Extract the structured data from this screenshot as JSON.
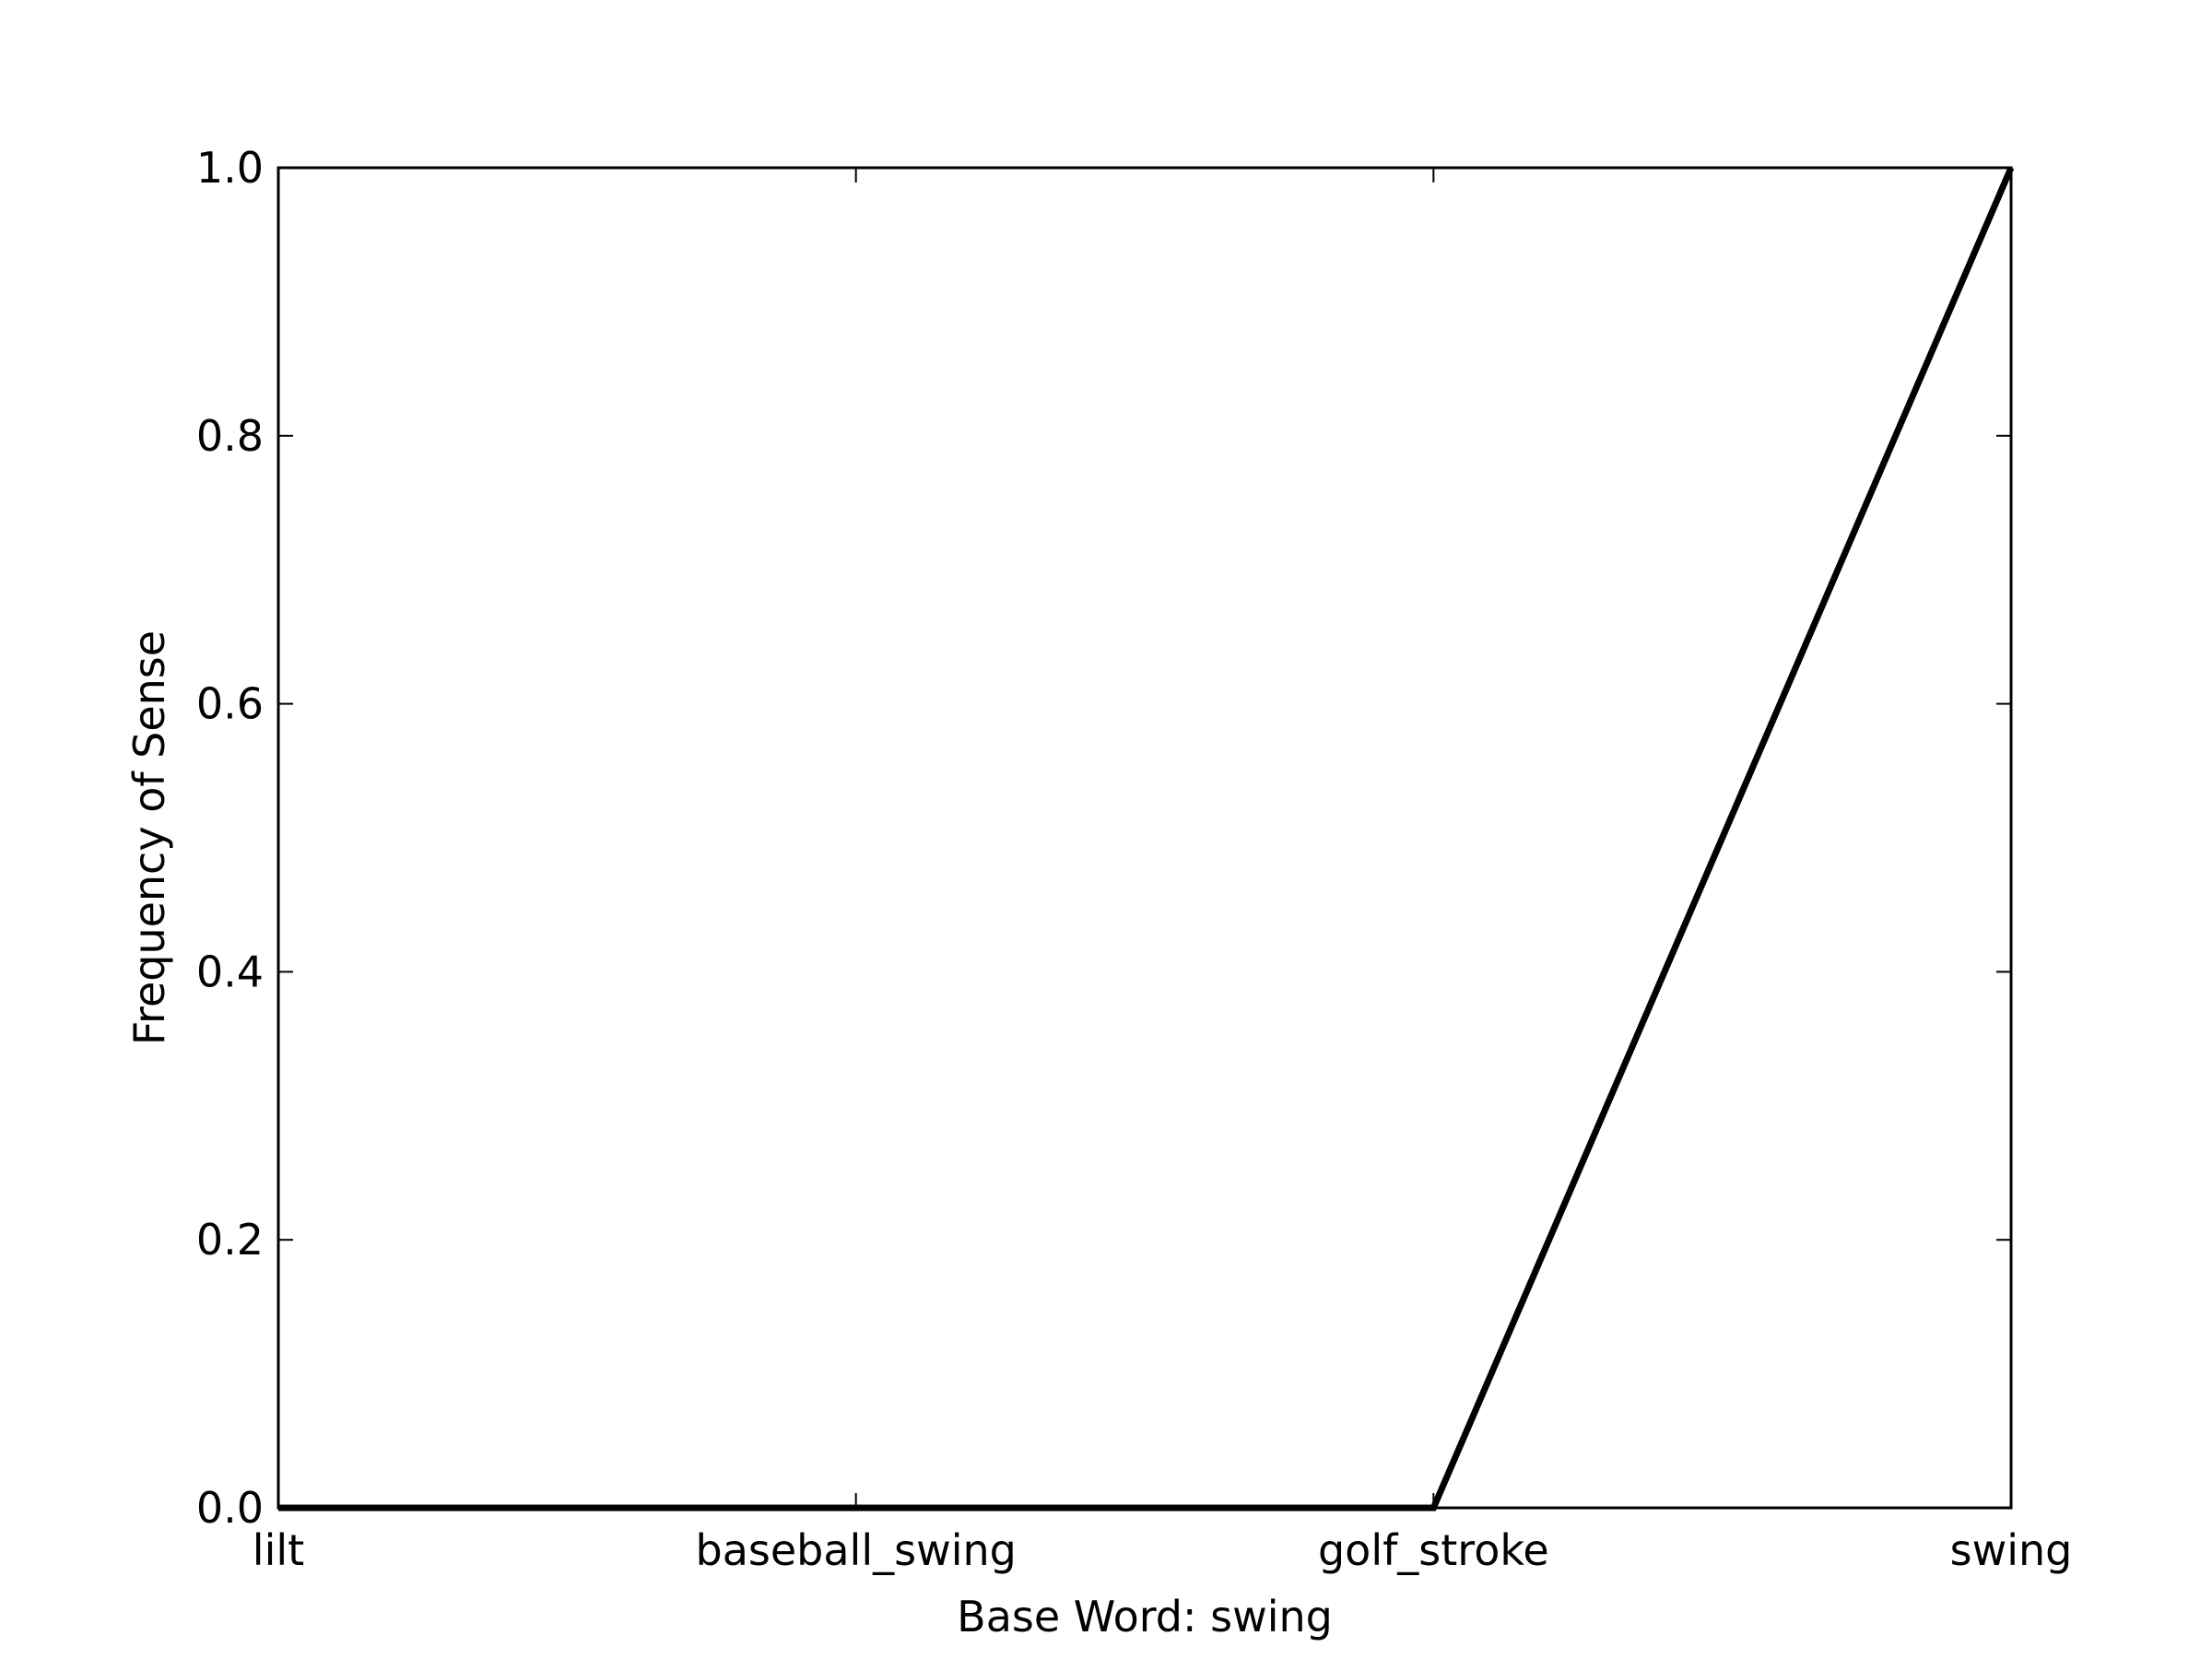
{
  "chart_data": {
    "type": "line",
    "categories": [
      "lilt",
      "baseball_swing",
      "golf_stroke",
      "swing"
    ],
    "series": [
      {
        "values": [
          0.0,
          0.0,
          0.0,
          1.0
        ]
      }
    ],
    "xlabel": "Base Word: swing",
    "ylabel": "Frequency of Sense",
    "ylim": [
      0.0,
      1.0
    ],
    "yticks": [
      "0.0",
      "0.2",
      "0.4",
      "0.6",
      "0.8",
      "1.0"
    ],
    "grid": false,
    "colors": {
      "line": "#000000",
      "axes": "#000000",
      "background": "#ffffff"
    }
  }
}
